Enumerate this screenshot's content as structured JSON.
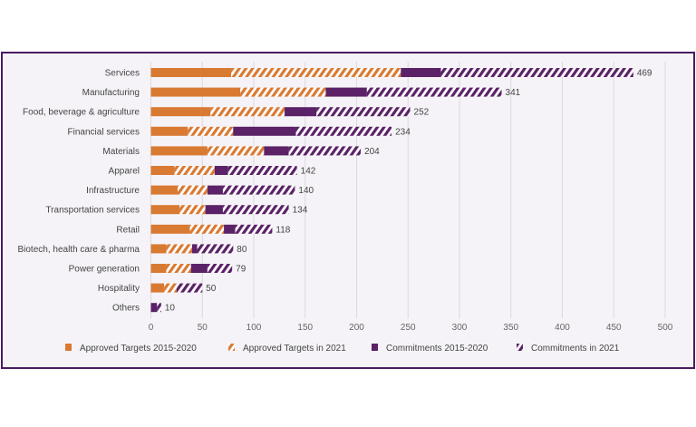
{
  "chart_data": {
    "type": "bar",
    "orientation": "horizontal",
    "stacked": true,
    "title": "",
    "xlabel": "",
    "ylabel": "",
    "xlim": [
      0,
      500
    ],
    "xticks": [
      0,
      50,
      100,
      150,
      200,
      250,
      300,
      350,
      400,
      450,
      500
    ],
    "grid": true,
    "legend_position": "bottom",
    "categories": [
      "Services",
      "Manufacturing",
      "Food, beverage & agriculture",
      "Financial services",
      "Materials",
      "Apparel",
      "Infrastructure",
      "Transportation services",
      "Retail",
      "Biotech, health care & pharma",
      "Power generation",
      "Hospitality",
      "Others"
    ],
    "totals": [
      469,
      341,
      252,
      234,
      204,
      142,
      140,
      134,
      118,
      80,
      79,
      50,
      10
    ],
    "series": [
      {
        "name": "Approved Targets 2015-2020",
        "color": "#d97a33",
        "pattern": "solid",
        "values": [
          78,
          87,
          58,
          36,
          55,
          23,
          26,
          28,
          38,
          15,
          15,
          13,
          0
        ]
      },
      {
        "name": "Approved Targets in 2021",
        "color": "#d97a33",
        "pattern": "hatched",
        "values": [
          165,
          83,
          72,
          44,
          55,
          39,
          29,
          25,
          33,
          25,
          24,
          12,
          0
        ]
      },
      {
        "name": "Commitments 2015-2020",
        "color": "#5b2267",
        "pattern": "solid",
        "values": [
          39,
          40,
          31,
          61,
          24,
          13,
          15,
          17,
          11,
          5,
          16,
          0,
          6
        ]
      },
      {
        "name": "Commitments in 2021",
        "color": "#5b2267",
        "pattern": "hatched",
        "values": [
          187,
          131,
          91,
          93,
          70,
          67,
          70,
          64,
          36,
          35,
          24,
          25,
          4
        ]
      }
    ]
  }
}
